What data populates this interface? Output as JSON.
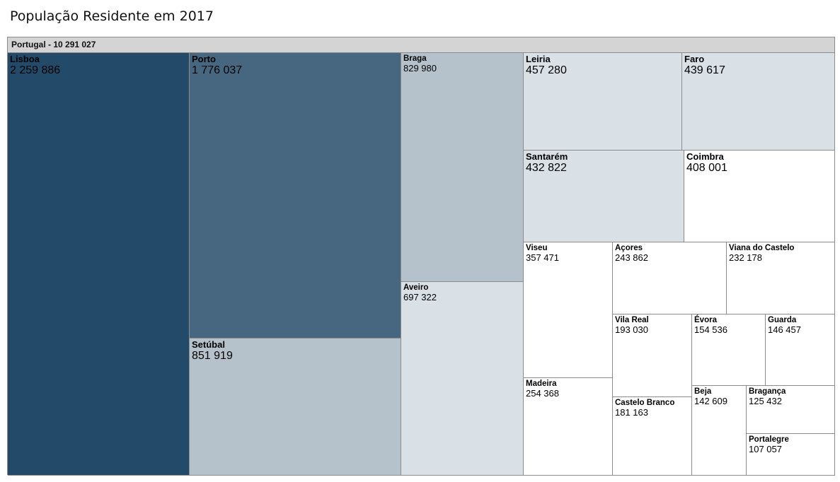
{
  "title": "População Residente em 2017",
  "root_label": "Portugal - 10 291 027",
  "colors": {
    "darkest": "#234b69",
    "dark": "#46677f",
    "mid": "#b5c2cb",
    "light": "#d9e0e6",
    "white": "#ffffff",
    "header": "#d4d4d4",
    "border": "#8c8c8c"
  },
  "chart_data": {
    "type": "treemap",
    "title": "População Residente em 2017",
    "root": {
      "name": "Portugal",
      "value": 10291027
    },
    "items": [
      {
        "name": "Lisboa",
        "value": 2259886,
        "label": "2 259 886"
      },
      {
        "name": "Porto",
        "value": 1776037,
        "label": "1 776 037"
      },
      {
        "name": "Setúbal",
        "value": 851919,
        "label": "851 919"
      },
      {
        "name": "Braga",
        "value": 829980,
        "label": "829 980"
      },
      {
        "name": "Aveiro",
        "value": 697322,
        "label": "697 322"
      },
      {
        "name": "Leiria",
        "value": 457280,
        "label": "457 280"
      },
      {
        "name": "Faro",
        "value": 439617,
        "label": "439 617"
      },
      {
        "name": "Santarém",
        "value": 432822,
        "label": "432 822"
      },
      {
        "name": "Coimbra",
        "value": 408001,
        "label": "408 001"
      },
      {
        "name": "Viseu",
        "value": 357471,
        "label": "357 471"
      },
      {
        "name": "Madeira",
        "value": 254368,
        "label": "254 368"
      },
      {
        "name": "Açores",
        "value": 243862,
        "label": "243 862"
      },
      {
        "name": "Viana do Castelo",
        "value": 232178,
        "label": "232 178"
      },
      {
        "name": "Vila Real",
        "value": 193030,
        "label": "193 030"
      },
      {
        "name": "Castelo Branco",
        "value": 181163,
        "label": "181 163"
      },
      {
        "name": "Évora",
        "value": 154536,
        "label": "154 536"
      },
      {
        "name": "Guarda",
        "value": 146457,
        "label": "146 457"
      },
      {
        "name": "Beja",
        "value": 142609,
        "label": "142 609"
      },
      {
        "name": "Bragança",
        "value": 125432,
        "label": "125 432"
      },
      {
        "name": "Portalegre",
        "value": 107057,
        "label": "107 057"
      }
    ]
  }
}
